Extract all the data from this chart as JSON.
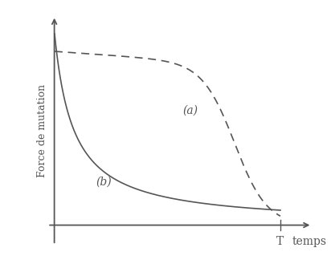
{
  "title": "",
  "ylabel": "Force de mutation",
  "xlabel": "temps",
  "T_label": "T",
  "curve_a_label": "(a)",
  "curve_b_label": "(b)",
  "line_color": "#555555",
  "background_color": "#ffffff",
  "figsize": [
    4.12,
    3.29
  ],
  "dpi": 100
}
